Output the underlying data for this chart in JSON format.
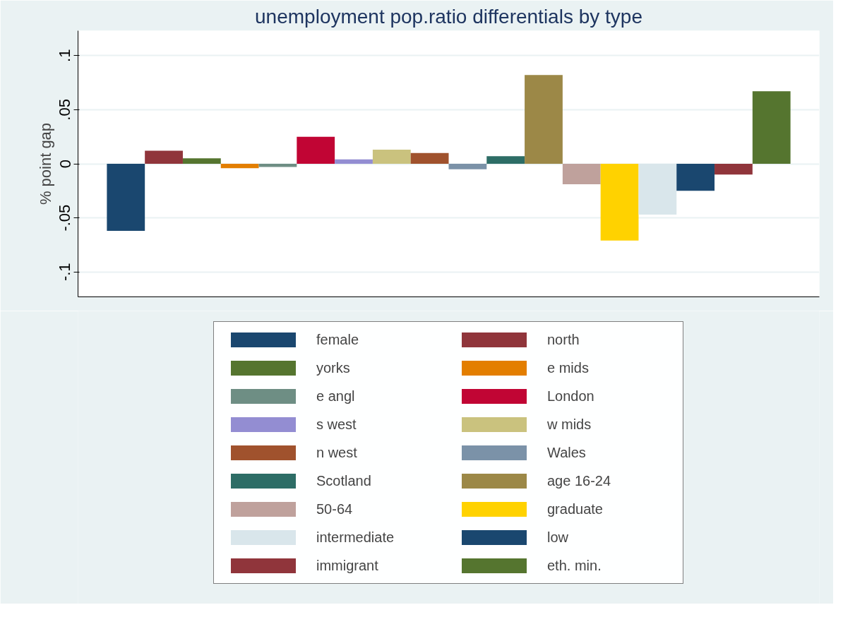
{
  "chart_data": {
    "type": "bar",
    "title": "unemployment pop.ratio differentials by type",
    "ylabel": "% point gap",
    "categories": [
      null
    ],
    "series": [
      {
        "name": "female",
        "color": "#1a476f",
        "values": [
          -0.062
        ]
      },
      {
        "name": "north",
        "color": "#90353b",
        "values": [
          0.012
        ]
      },
      {
        "name": "yorks",
        "color": "#55752f",
        "values": [
          0.005
        ]
      },
      {
        "name": "e mids",
        "color": "#e37e00",
        "values": [
          -0.004
        ]
      },
      {
        "name": "e angl",
        "color": "#6e8e84",
        "values": [
          -0.003
        ]
      },
      {
        "name": "London",
        "color": "#c10534",
        "values": [
          0.025
        ]
      },
      {
        "name": "s west",
        "color": "#938dd2",
        "values": [
          0.004
        ]
      },
      {
        "name": "w mids",
        "color": "#cac27e",
        "values": [
          0.013
        ]
      },
      {
        "name": "n west",
        "color": "#a0522d",
        "values": [
          0.01
        ]
      },
      {
        "name": "Wales",
        "color": "#7b92a8",
        "values": [
          -0.005
        ]
      },
      {
        "name": "Scotland",
        "color": "#2d6d66",
        "values": [
          0.007
        ]
      },
      {
        "name": "age 16-24",
        "color": "#9c8847",
        "values": [
          0.082
        ]
      },
      {
        "name": "50-64",
        "color": "#bfa19c",
        "values": [
          -0.019
        ]
      },
      {
        "name": "graduate",
        "color": "#ffd200",
        "values": [
          -0.071
        ]
      },
      {
        "name": "intermediate",
        "color": "#d9e6eb",
        "values": [
          -0.047
        ]
      },
      {
        "name": "low",
        "color": "#1a476f",
        "values": [
          -0.025
        ]
      },
      {
        "name": "immigrant",
        "color": "#90353b",
        "values": [
          -0.01
        ]
      },
      {
        "name": "eth. min.",
        "color": "#55752f",
        "values": [
          0.067
        ]
      }
    ],
    "ylim": [
      -0.123,
      0.123
    ],
    "yticks": [
      {
        "value": -0.1,
        "label": "-.1"
      },
      {
        "value": -0.05,
        "label": "-.05"
      },
      {
        "value": 0,
        "label": "0"
      },
      {
        "value": 0.05,
        "label": ".05"
      },
      {
        "value": 0.1,
        "label": ".1"
      }
    ],
    "grid": "y",
    "legend": "bottom"
  }
}
